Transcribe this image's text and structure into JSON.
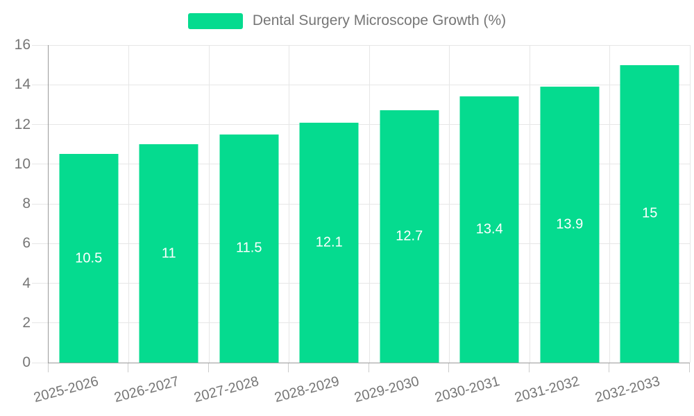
{
  "chart_data": {
    "type": "bar",
    "title": "Dental Surgery Microscope Growth (%)",
    "categories": [
      "2025-2026",
      "2026-2027",
      "2027-2028",
      "2028-2029",
      "2029-2030",
      "2030-2031",
      "2031-2032",
      "2032-2033"
    ],
    "values": [
      10.5,
      11,
      11.5,
      12.1,
      12.7,
      13.4,
      13.9,
      15
    ],
    "value_labels": [
      "10.5",
      "11",
      "11.5",
      "12.1",
      "12.7",
      "13.4",
      "13.9",
      "15"
    ],
    "xlabel": "",
    "ylabel": "",
    "ylim": [
      0,
      16
    ],
    "y_ticks": [
      0,
      2,
      4,
      6,
      8,
      10,
      12,
      14,
      16
    ],
    "grid": true,
    "legend_position": "top-center",
    "x_label_rotation_deg": -15,
    "colors": {
      "bar": "#05db8f",
      "grid": "#e6e6e6",
      "axis": "#999999",
      "tick_text": "#767676",
      "value_label_text": "#ffffff"
    }
  },
  "legend": {
    "label": "Dental Surgery Microscope Growth (%)"
  }
}
